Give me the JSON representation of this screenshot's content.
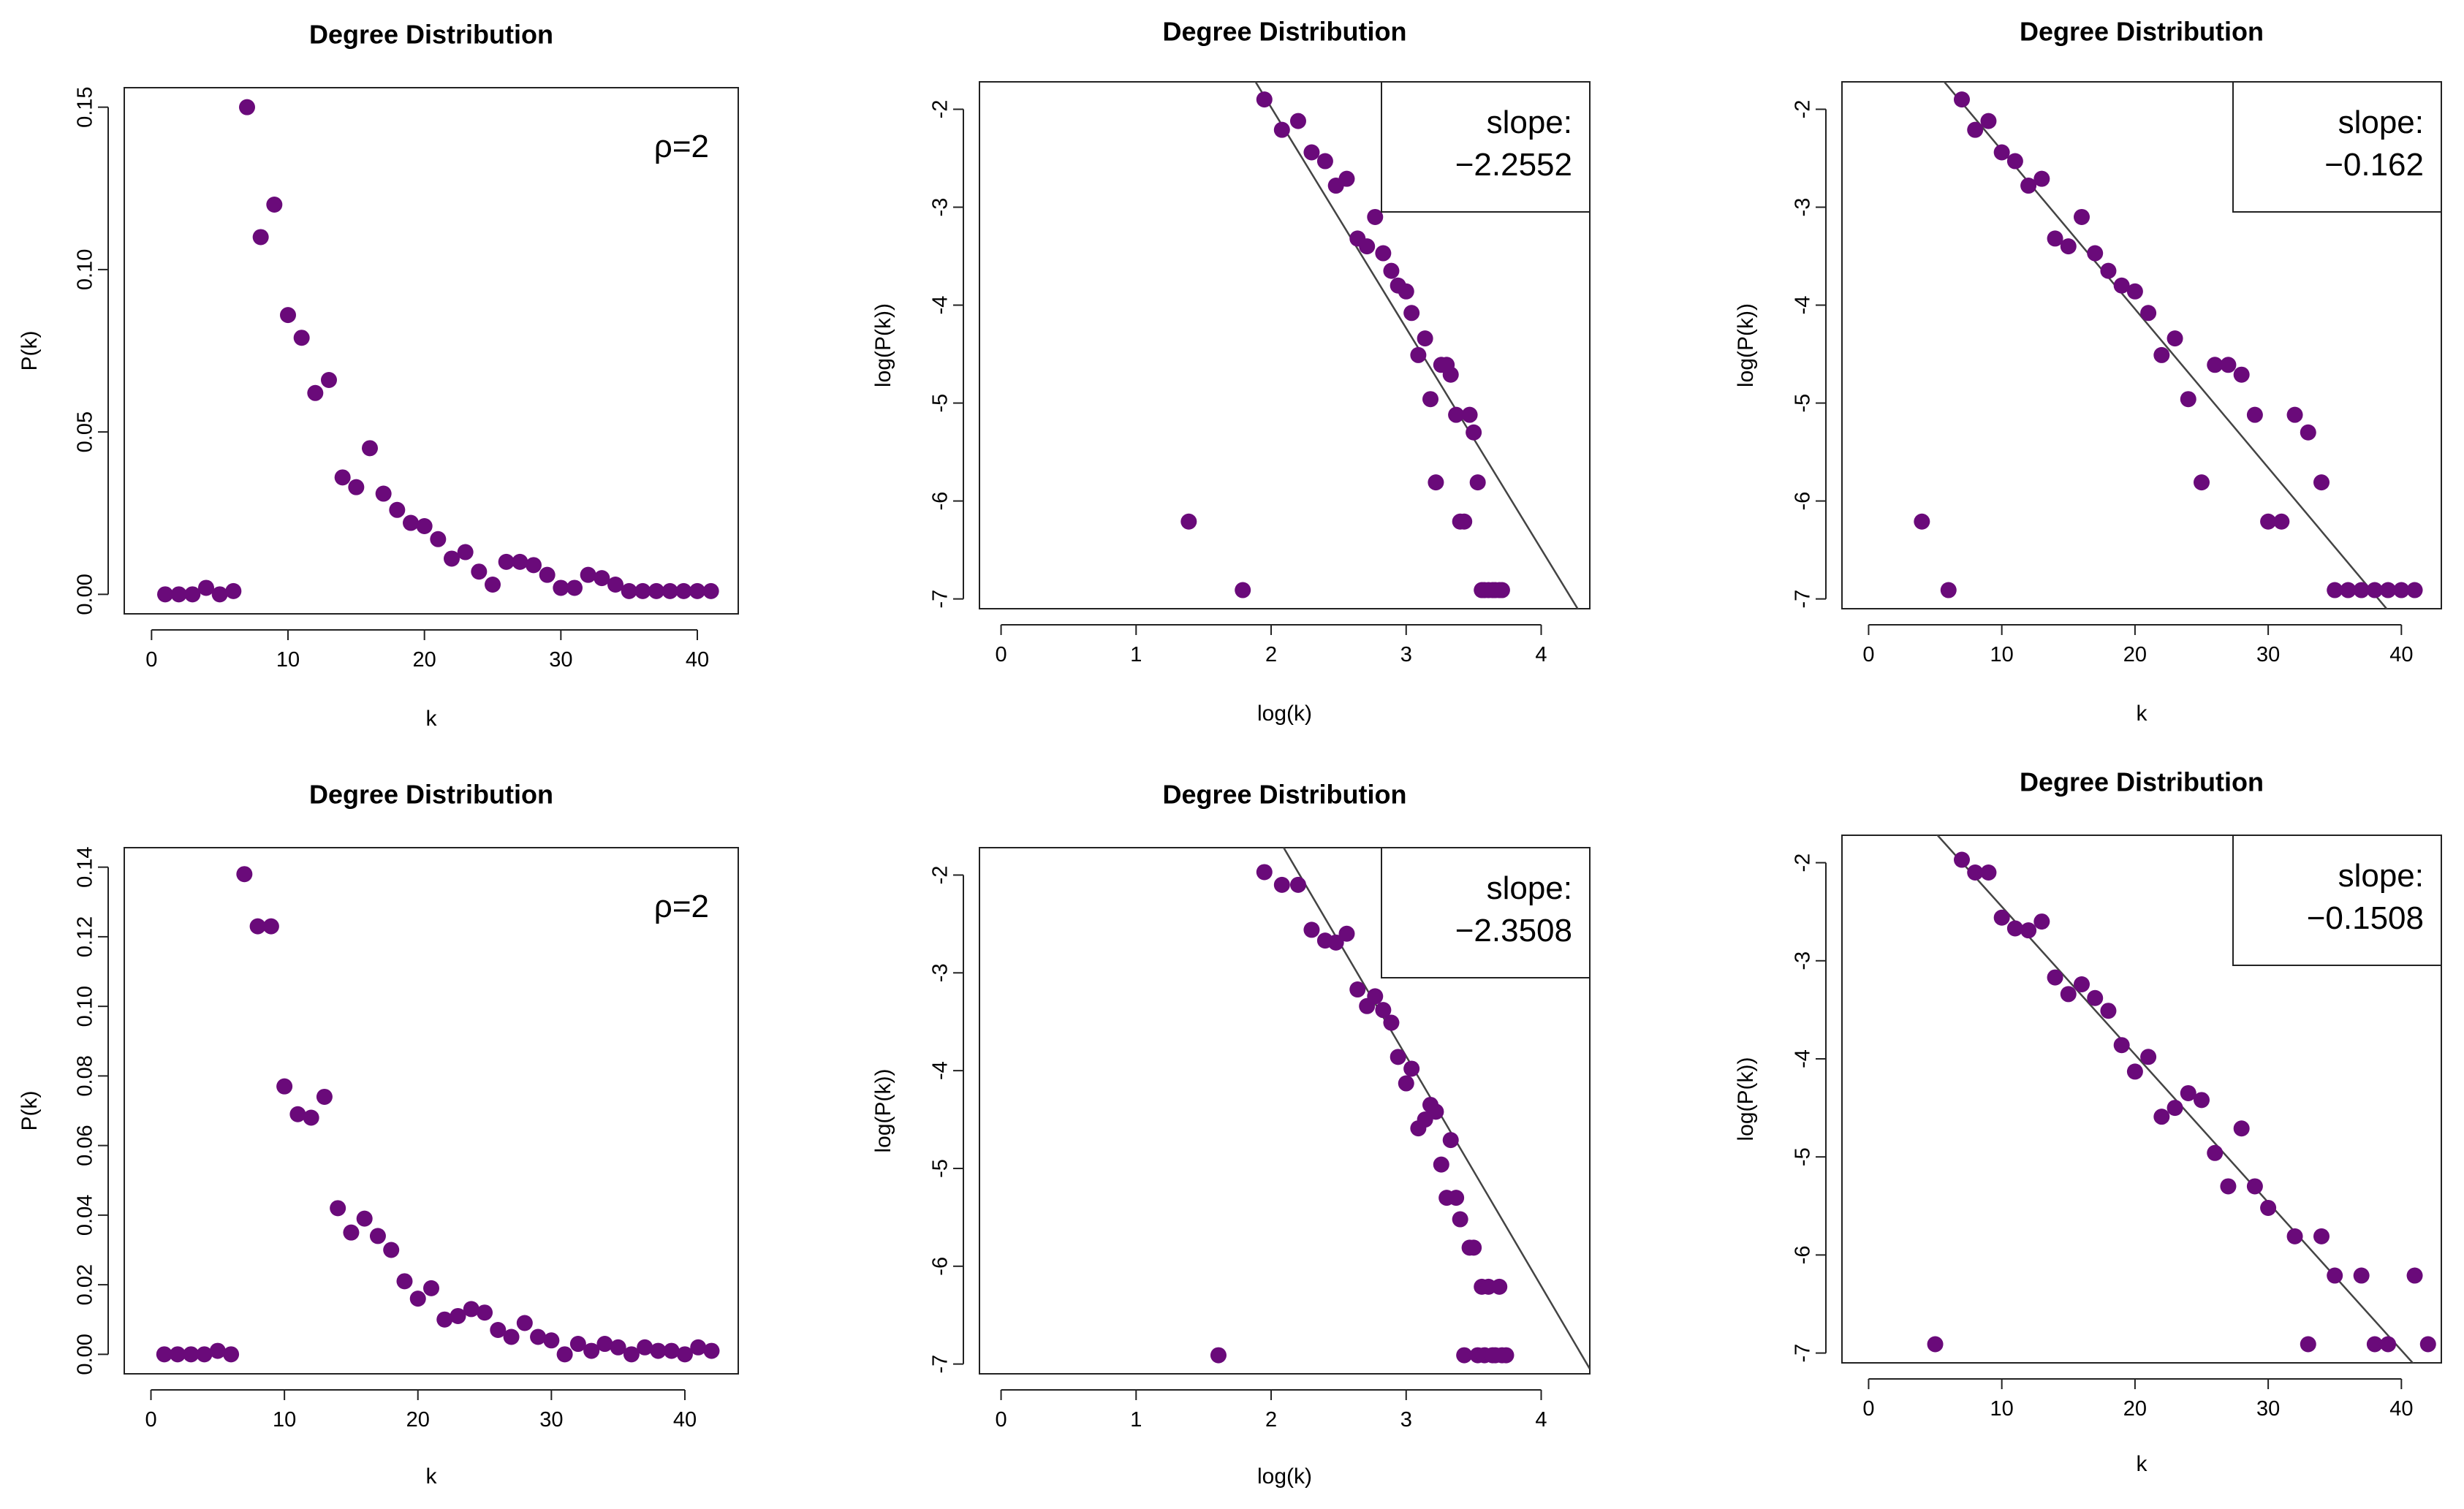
{
  "colors": {
    "points": "#6a0a7a",
    "fit_line": "#444444",
    "axes": "#222222",
    "background": "#ffffff"
  },
  "chart_data": [
    {
      "type": "scatter",
      "title": "Degree Distribution",
      "xlabel": "k",
      "ylabel": "P(k)",
      "xlim": [
        -2,
        43
      ],
      "ylim": [
        -0.006,
        0.156
      ],
      "xticks": [
        0,
        10,
        20,
        30,
        40
      ],
      "yticks": [
        0,
        0.05,
        0.1,
        0.15
      ],
      "ytick_labels": [
        "0.00",
        "0.05",
        "0.10",
        "0.15"
      ],
      "annotation": "ρ=2",
      "annotation_anchor": "top-right",
      "x": [
        1,
        2,
        3,
        4,
        5,
        6,
        7,
        8,
        9,
        10,
        11,
        12,
        13,
        14,
        15,
        16,
        17,
        18,
        19,
        20,
        21,
        22,
        23,
        24,
        25,
        26,
        27,
        28,
        29,
        30,
        31,
        32,
        33,
        34,
        35,
        36,
        37,
        38,
        39,
        40,
        41
      ],
      "y": [
        0.0,
        0.0,
        0.0,
        0.002,
        0.0,
        0.001,
        0.15,
        0.11,
        0.12,
        0.086,
        0.079,
        0.062,
        0.066,
        0.036,
        0.033,
        0.045,
        0.031,
        0.026,
        0.022,
        0.021,
        0.017,
        0.011,
        0.013,
        0.007,
        0.003,
        0.01,
        0.01,
        0.009,
        0.006,
        0.002,
        0.002,
        0.006,
        0.005,
        0.003,
        0.001,
        0.001,
        0.001,
        0.001,
        0.001,
        0.001,
        0.001
      ]
    },
    {
      "type": "scatter",
      "title": "Degree Distribution",
      "xlabel": "log(k)",
      "ylabel": "log(P(k))",
      "xlim": [
        -0.16,
        4.36
      ],
      "ylim": [
        -7.1,
        -1.72
      ],
      "xticks": [
        0,
        1,
        2,
        3,
        4
      ],
      "yticks": [
        -2,
        -3,
        -4,
        -5,
        -6,
        -7
      ],
      "annotation_lines": [
        "slope:",
        "−2.2552"
      ],
      "annotation_anchor": "top-right",
      "fit_line": {
        "slope": -2.2552,
        "intercept": 2.53
      },
      "x": [
        1.39,
        1.79,
        1.95,
        2.08,
        2.2,
        2.3,
        2.4,
        2.48,
        2.56,
        2.64,
        2.71,
        2.77,
        2.83,
        2.89,
        2.94,
        3.0,
        3.04,
        3.09,
        3.14,
        3.18,
        3.22,
        3.26,
        3.3,
        3.33,
        3.37,
        3.4,
        3.43,
        3.47,
        3.5,
        3.53,
        3.56,
        3.58,
        3.61,
        3.64,
        3.66,
        3.69,
        3.71
      ],
      "y": [
        -6.21,
        -6.91,
        -1.9,
        -2.21,
        -2.12,
        -2.44,
        -2.53,
        -2.78,
        -2.71,
        -3.32,
        -3.4,
        -3.1,
        -3.47,
        -3.65,
        -3.8,
        -3.86,
        -4.08,
        -4.51,
        -4.34,
        -4.96,
        -5.81,
        -4.61,
        -4.61,
        -4.71,
        -5.12,
        -6.21,
        -6.21,
        -5.12,
        -5.3,
        -5.81,
        -6.91,
        -6.91,
        -6.91,
        -6.91,
        -6.91,
        -6.91,
        -6.91
      ]
    },
    {
      "type": "scatter",
      "title": "Degree Distribution",
      "xlabel": "k",
      "ylabel": "log(P(k))",
      "xlim": [
        -2,
        43
      ],
      "ylim": [
        -7.1,
        -1.72
      ],
      "xticks": [
        0,
        10,
        20,
        30,
        40
      ],
      "yticks": [
        -2,
        -3,
        -4,
        -5,
        -6,
        -7
      ],
      "annotation_lines": [
        "slope:",
        "−0.162"
      ],
      "annotation_anchor": "top-right",
      "fit_line": {
        "slope": -0.162,
        "intercept": -0.8
      },
      "x": [
        4,
        6,
        7,
        8,
        9,
        10,
        11,
        12,
        13,
        14,
        15,
        16,
        17,
        18,
        19,
        20,
        21,
        22,
        23,
        24,
        25,
        26,
        27,
        28,
        29,
        30,
        31,
        32,
        33,
        34,
        35,
        36,
        37,
        38,
        39,
        40,
        41
      ],
      "y": [
        -6.21,
        -6.91,
        -1.9,
        -2.21,
        -2.12,
        -2.44,
        -2.53,
        -2.78,
        -2.71,
        -3.32,
        -3.4,
        -3.1,
        -3.47,
        -3.65,
        -3.8,
        -3.86,
        -4.08,
        -4.51,
        -4.34,
        -4.96,
        -5.81,
        -4.61,
        -4.61,
        -4.71,
        -5.12,
        -6.21,
        -6.21,
        -5.12,
        -5.3,
        -5.81,
        -6.91,
        -6.91,
        -6.91,
        -6.91,
        -6.91,
        -6.91,
        -6.91
      ]
    },
    {
      "type": "scatter",
      "title": "Degree Distribution",
      "xlabel": "k",
      "ylabel": "P(k)",
      "xlim": [
        -2,
        44
      ],
      "ylim": [
        -0.0056,
        0.1456
      ],
      "xticks": [
        0,
        10,
        20,
        30,
        40
      ],
      "yticks": [
        0,
        0.02,
        0.04,
        0.06,
        0.08,
        0.1,
        0.12,
        0.14
      ],
      "ytick_labels": [
        "0.00",
        "0.02",
        "0.04",
        "0.06",
        "0.08",
        "0.10",
        "0.12",
        "0.14"
      ],
      "annotation": "ρ=2",
      "annotation_anchor": "top-right",
      "x": [
        1,
        2,
        3,
        4,
        5,
        6,
        7,
        8,
        9,
        10,
        11,
        12,
        13,
        14,
        15,
        16,
        17,
        18,
        19,
        20,
        21,
        22,
        23,
        24,
        25,
        26,
        27,
        28,
        29,
        30,
        31,
        32,
        33,
        34,
        35,
        36,
        37,
        38,
        39,
        40,
        41,
        42
      ],
      "y": [
        0.0,
        0.0,
        0.0,
        0.0,
        0.001,
        0.0,
        0.138,
        0.123,
        0.123,
        0.077,
        0.069,
        0.068,
        0.074,
        0.042,
        0.035,
        0.039,
        0.034,
        0.03,
        0.021,
        0.016,
        0.019,
        0.01,
        0.011,
        0.013,
        0.012,
        0.007,
        0.005,
        0.009,
        0.005,
        0.004,
        0.0,
        0.003,
        0.001,
        0.003,
        0.002,
        0.0,
        0.002,
        0.001,
        0.001,
        0.0,
        0.002,
        0.001
      ]
    },
    {
      "type": "scatter",
      "title": "Degree Distribution",
      "xlabel": "log(k)",
      "ylabel": "log(P(k))",
      "xlim": [
        -0.16,
        4.36
      ],
      "ylim": [
        -7.1,
        -1.72
      ],
      "xticks": [
        0,
        1,
        2,
        3,
        4
      ],
      "yticks": [
        -2,
        -3,
        -4,
        -5,
        -6,
        -7
      ],
      "annotation_lines": [
        "slope:",
        "−2.3508"
      ],
      "annotation_anchor": "top-right",
      "fit_line": {
        "slope": -2.3508,
        "intercept": 3.2
      },
      "x": [
        1.61,
        1.95,
        2.08,
        2.2,
        2.3,
        2.4,
        2.48,
        2.56,
        2.64,
        2.71,
        2.77,
        2.83,
        2.89,
        2.94,
        3.0,
        3.04,
        3.09,
        3.14,
        3.18,
        3.22,
        3.26,
        3.3,
        3.33,
        3.37,
        3.4,
        3.43,
        3.47,
        3.5,
        3.53,
        3.56,
        3.58,
        3.61,
        3.64,
        3.66,
        3.69,
        3.71,
        3.74
      ],
      "y": [
        -6.91,
        -1.97,
        -2.1,
        -2.1,
        -2.56,
        -2.67,
        -2.69,
        -2.6,
        -3.17,
        -3.34,
        -3.24,
        -3.38,
        -3.51,
        -3.86,
        -4.13,
        -3.98,
        -4.59,
        -4.5,
        -4.35,
        -4.42,
        -4.96,
        -5.3,
        -4.71,
        -5.3,
        -5.52,
        -6.91,
        -5.81,
        -5.81,
        -6.91,
        -6.21,
        -6.91,
        -6.21,
        -6.91,
        -6.91,
        -6.21,
        -6.91,
        -6.91
      ]
    },
    {
      "type": "scatter",
      "title": "Degree Distribution",
      "xlabel": "k",
      "ylabel": "log(P(k))",
      "xlim": [
        -2,
        43
      ],
      "ylim": [
        -7.1,
        -1.72
      ],
      "xticks": [
        0,
        10,
        20,
        30,
        40
      ],
      "yticks": [
        -2,
        -3,
        -4,
        -5,
        -6,
        -7
      ],
      "annotation_lines": [
        "slope:",
        "−0.1508"
      ],
      "annotation_anchor": "top-right",
      "fit_line": {
        "slope": -0.1508,
        "intercept": -0.94
      },
      "x": [
        5,
        7,
        8,
        9,
        10,
        11,
        12,
        13,
        14,
        15,
        16,
        17,
        18,
        19,
        20,
        21,
        22,
        23,
        24,
        25,
        26,
        27,
        28,
        29,
        30,
        32,
        33,
        34,
        35,
        37,
        38,
        39,
        41,
        42
      ],
      "y": [
        -6.91,
        -1.97,
        -2.1,
        -2.1,
        -2.56,
        -2.67,
        -2.69,
        -2.6,
        -3.17,
        -3.34,
        -3.24,
        -3.38,
        -3.51,
        -3.86,
        -4.13,
        -3.98,
        -4.59,
        -4.5,
        -4.35,
        -4.42,
        -4.96,
        -5.3,
        -4.71,
        -5.3,
        -5.52,
        -5.81,
        -6.91,
        -5.81,
        -6.21,
        -6.21,
        -6.91,
        -6.91,
        -6.21,
        -6.91
      ]
    }
  ]
}
